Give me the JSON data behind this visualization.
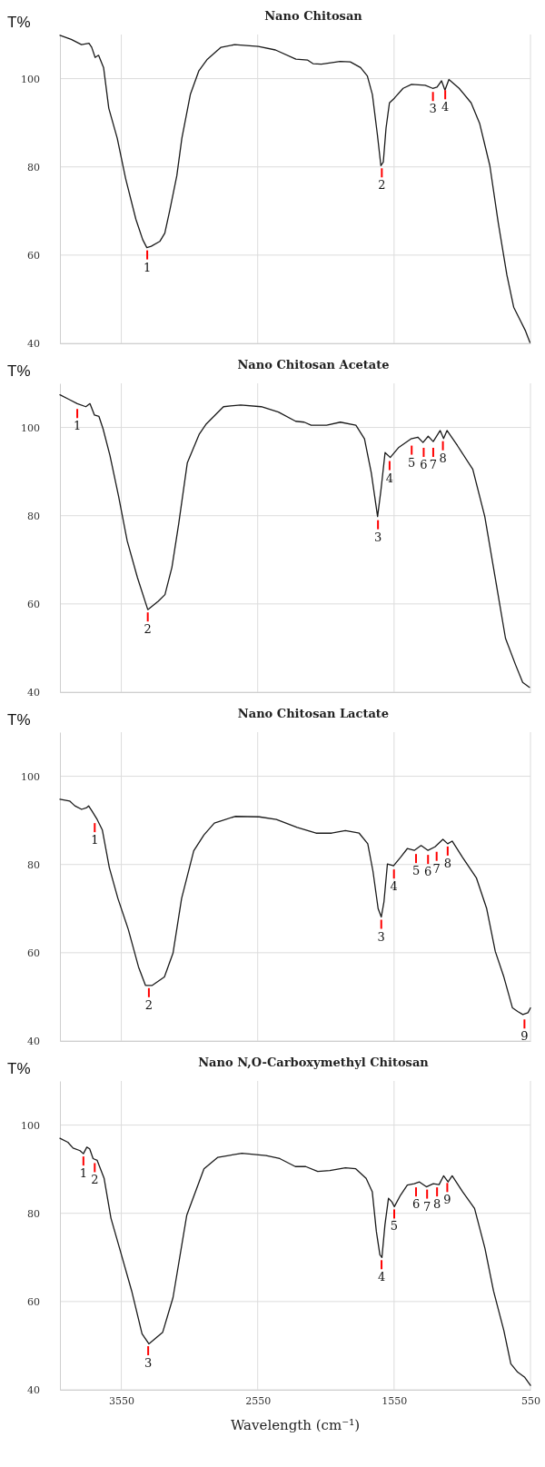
{
  "chart_data": [
    {
      "type": "line",
      "title": "Nano Chitosan",
      "ylabel": "T%",
      "xlim": [
        4000,
        550
      ],
      "xticks": [
        3550,
        2550,
        1550,
        550
      ],
      "ylim": [
        40,
        110
      ],
      "yticks": [
        40,
        60,
        80,
        100
      ],
      "grid": true,
      "tick_labels": "y",
      "series": [
        {
          "color": "#1a1a1a",
          "x": [
            4000,
            3917,
            3842,
            3787,
            3767,
            3742,
            3717,
            3680,
            3642,
            3580,
            3518,
            3443,
            3393,
            3363,
            3331,
            3268,
            3231,
            3193,
            3143,
            3106,
            3044,
            2981,
            2919,
            2819,
            2719,
            2545,
            2420,
            2270,
            2183,
            2145,
            2083,
            1946,
            1871,
            1796,
            1746,
            1709,
            1672,
            1647,
            1629,
            1609,
            1584,
            1547,
            1484,
            1422,
            1322,
            1267,
            1235,
            1202,
            1177,
            1148,
            1073,
            985,
            923,
            848,
            786,
            723,
            673,
            623,
            586,
            554
          ],
          "values": [
            109.8,
            108.9,
            107.7,
            108.0,
            107.1,
            104.8,
            105.3,
            102.5,
            93.3,
            86.5,
            77.3,
            68.1,
            63.5,
            61.7,
            62.0,
            63.1,
            65.0,
            70.4,
            78.0,
            86.5,
            96.4,
            101.8,
            104.4,
            107.1,
            107.7,
            107.3,
            106.5,
            104.4,
            104.2,
            103.4,
            103.3,
            103.9,
            103.8,
            102.5,
            100.6,
            96.4,
            87.2,
            80.3,
            81.1,
            88.8,
            94.5,
            95.6,
            97.8,
            98.7,
            98.5,
            97.8,
            98.1,
            99.5,
            97.4,
            99.8,
            97.8,
            94.5,
            89.9,
            80.3,
            67.3,
            55.5,
            48.2,
            45.1,
            42.8,
            40.2
          ]
        }
      ],
      "annotations": [
        {
          "text": "1",
          "x": 3360,
          "y": 61.7
        },
        {
          "text": "2",
          "x": 1640,
          "y": 80.3
        },
        {
          "text": "3",
          "x": 1265,
          "y": 97.6
        },
        {
          "text": "4",
          "x": 1175,
          "y": 98
        }
      ]
    },
    {
      "type": "line",
      "title": "Nano Chitosan Acetate",
      "ylabel": "T%",
      "xlim": [
        4000,
        550
      ],
      "xticks": [
        3550,
        2550,
        1550,
        550
      ],
      "ylim": [
        40,
        110
      ],
      "yticks": [
        40,
        60,
        80,
        100
      ],
      "grid": true,
      "tick_labels": "y",
      "series": [
        {
          "color": "#1a1a1a",
          "x": [
            4000,
            3936,
            3873,
            3810,
            3780,
            3747,
            3714,
            3684,
            3633,
            3570,
            3507,
            3432,
            3356,
            3280,
            3230,
            3179,
            3129,
            3066,
            2978,
            2927,
            2801,
            2675,
            2524,
            2398,
            2272,
            2209,
            2158,
            2045,
            1944,
            1830,
            1767,
            1717,
            1671,
            1646,
            1616,
            1578,
            1515,
            1427,
            1376,
            1338,
            1300,
            1263,
            1212,
            1187,
            1162,
            1086,
            973,
            885,
            809,
            733,
            658,
            607,
            557
          ],
          "values": [
            107.4,
            106.4,
            105.4,
            104.7,
            105.4,
            102.8,
            102.5,
            99.7,
            93.6,
            84.4,
            74.3,
            66.0,
            58.7,
            60.6,
            62.1,
            68.3,
            78.2,
            92.0,
            98.5,
            100.8,
            104.7,
            105.1,
            104.7,
            103.5,
            101.4,
            101.2,
            100.5,
            100.5,
            101.2,
            100.5,
            97.4,
            89.7,
            79.8,
            85.9,
            94.3,
            93.2,
            95.5,
            97.4,
            97.8,
            96.6,
            98.0,
            96.8,
            99.3,
            97.5,
            99.3,
            95.9,
            90.5,
            79.8,
            66.0,
            52.2,
            46.1,
            42.2,
            41.1
          ]
        }
      ],
      "annotations": [
        {
          "text": "1",
          "x": 3873,
          "y": 104.8
        },
        {
          "text": "2",
          "x": 3356,
          "y": 58.7
        },
        {
          "text": "3",
          "x": 1668,
          "y": 79.6
        },
        {
          "text": "4",
          "x": 1583,
          "y": 93
        },
        {
          "text": "5",
          "x": 1421,
          "y": 96.5
        },
        {
          "text": "6",
          "x": 1333,
          "y": 96
        },
        {
          "text": "7",
          "x": 1263,
          "y": 96
        },
        {
          "text": "8",
          "x": 1192,
          "y": 97.5
        }
      ]
    },
    {
      "type": "line",
      "title": "Nano Chitosan Lactate",
      "ylabel": "T%",
      "xlim": [
        4000,
        550
      ],
      "xticks": [
        3550,
        2550,
        1550,
        550
      ],
      "ylim": [
        40,
        110
      ],
      "yticks": [
        40,
        60,
        80,
        100
      ],
      "grid": true,
      "tick_labels": "y",
      "series": [
        {
          "color": "#1a1a1a",
          "x": [
            4000,
            3929,
            3891,
            3841,
            3803,
            3790,
            3765,
            3727,
            3689,
            3638,
            3575,
            3499,
            3424,
            3373,
            3323,
            3234,
            3171,
            3108,
            3019,
            2944,
            2868,
            2716,
            2539,
            2413,
            2261,
            2122,
            2008,
            1907,
            1806,
            1743,
            1705,
            1667,
            1644,
            1624,
            1599,
            1554,
            1503,
            1453,
            1402,
            1352,
            1301,
            1250,
            1192,
            1157,
            1124,
            1048,
            947,
            871,
            808,
            745,
            682,
            644,
            606,
            568,
            550
          ],
          "values": [
            94.8,
            94.4,
            93.3,
            92.5,
            92.9,
            93.3,
            92.1,
            90.2,
            87.8,
            79.3,
            72.3,
            65.3,
            56.8,
            52.6,
            52.6,
            54.5,
            59.9,
            72.3,
            83.1,
            86.7,
            89.4,
            90.9,
            90.8,
            90.2,
            88.4,
            87.1,
            87.1,
            87.7,
            87.1,
            84.7,
            78.5,
            70.0,
            68.1,
            71.6,
            80.1,
            79.7,
            81.6,
            83.6,
            83.2,
            84.3,
            83.2,
            84.0,
            85.7,
            84.7,
            85.3,
            81.6,
            77.0,
            70.0,
            60.3,
            54.5,
            47.5,
            46.7,
            46.0,
            46.4,
            47.5
          ]
        }
      ],
      "annotations": [
        {
          "text": "1",
          "x": 3745,
          "y": 90
        },
        {
          "text": "2",
          "x": 3348,
          "y": 52.6
        },
        {
          "text": "3",
          "x": 1644,
          "y": 68.1
        },
        {
          "text": "4",
          "x": 1551,
          "y": 79.5
        },
        {
          "text": "5",
          "x": 1389,
          "y": 83
        },
        {
          "text": "6",
          "x": 1301,
          "y": 82.8
        },
        {
          "text": "7",
          "x": 1238,
          "y": 83.5
        },
        {
          "text": "8",
          "x": 1157,
          "y": 84.7
        },
        {
          "text": "9",
          "x": 594,
          "y": 45.5
        }
      ]
    },
    {
      "type": "line",
      "title": "Nano N,O-Carboxymethyl Chitosan",
      "xlabel": "Wavelength (cm⁻¹)",
      "ylabel": "T%",
      "xlim": [
        4000,
        550
      ],
      "xticks": [
        3550,
        2550,
        1550,
        550
      ],
      "ylim": [
        40,
        110
      ],
      "yticks": [
        40,
        60,
        80,
        100
      ],
      "grid": true,
      "series": [
        {
          "color": "#1a1a1a",
          "x": [
            4000,
            3942,
            3904,
            3853,
            3828,
            3803,
            3782,
            3757,
            3727,
            3676,
            3626,
            3563,
            3474,
            3398,
            3348,
            3247,
            3171,
            3070,
            2944,
            2842,
            2666,
            2489,
            2388,
            2274,
            2198,
            2110,
            2021,
            1907,
            1831,
            1755,
            1710,
            1680,
            1654,
            1639,
            1617,
            1591,
            1566,
            1548,
            1503,
            1453,
            1402,
            1364,
            1313,
            1263,
            1220,
            1187,
            1154,
            1124,
            1048,
            960,
            884,
            821,
            745,
            694,
            644,
            594,
            550
          ],
          "values": [
            97.0,
            96.1,
            94.8,
            94.2,
            93.5,
            95.0,
            94.6,
            92.4,
            92.0,
            87.9,
            78.9,
            72.1,
            62.4,
            52.7,
            50.4,
            53.0,
            60.9,
            79.6,
            90.1,
            92.7,
            93.6,
            93.1,
            92.4,
            90.6,
            90.6,
            89.5,
            89.7,
            90.3,
            90.1,
            87.9,
            84.9,
            75.9,
            70.6,
            70.0,
            77.4,
            83.4,
            82.6,
            81.5,
            84.1,
            86.4,
            86.7,
            87.1,
            86.0,
            86.7,
            86.5,
            88.5,
            87.1,
            88.5,
            84.9,
            81.1,
            72.1,
            62.4,
            53.4,
            45.9,
            44.0,
            42.9,
            41.0
          ]
        }
      ],
      "annotations": [
        {
          "text": "1",
          "x": 3828,
          "y": 93.5
        },
        {
          "text": "2",
          "x": 3745,
          "y": 92
        },
        {
          "text": "3",
          "x": 3353,
          "y": 50.5
        },
        {
          "text": "4",
          "x": 1642,
          "y": 70
        },
        {
          "text": "5",
          "x": 1549,
          "y": 81.5
        },
        {
          "text": "6",
          "x": 1389,
          "y": 86.5
        },
        {
          "text": "7",
          "x": 1308,
          "y": 86
        },
        {
          "text": "8",
          "x": 1235,
          "y": 86.5
        },
        {
          "text": "9",
          "x": 1160,
          "y": 87.5
        }
      ]
    }
  ]
}
